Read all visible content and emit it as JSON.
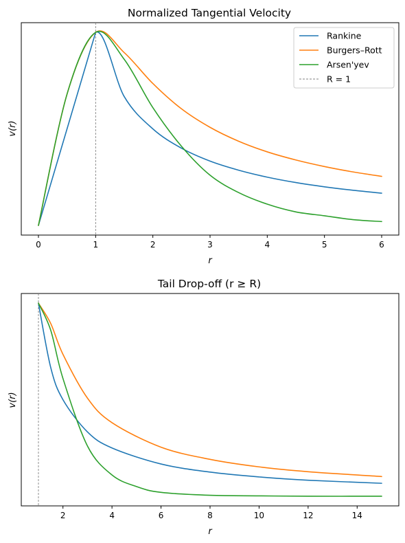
{
  "chart_data": [
    {
      "type": "line",
      "title": "Normalized Tangential Velocity",
      "xlabel": "r",
      "ylabel": "v(r)",
      "xlim": [
        -0.3,
        6.3
      ],
      "ylim": [
        -0.05,
        1.05
      ],
      "xticks": [
        0,
        1,
        2,
        3,
        4,
        5,
        6
      ],
      "yticks_shown": false,
      "grid": false,
      "legend_position": "top-right",
      "reference_line": {
        "x": 1,
        "label": "R = 1",
        "style": "dashed",
        "color": "#808080"
      },
      "series": [
        {
          "name": "Rankine",
          "color": "#1f77b4",
          "x": [
            0,
            0.5,
            1.0,
            1.5,
            2.0,
            2.5,
            3.0,
            3.5,
            4.0,
            4.5,
            5.0,
            5.5,
            6.0
          ],
          "y": [
            0,
            0.5,
            1.0,
            0.667,
            0.5,
            0.4,
            0.333,
            0.286,
            0.25,
            0.222,
            0.2,
            0.182,
            0.167
          ]
        },
        {
          "name": "Burgers–Rott",
          "color": "#ff7f0e",
          "x": [
            0,
            0.5,
            1.0,
            1.5,
            2.0,
            2.5,
            3.0,
            3.5,
            4.0,
            4.5,
            5.0,
            5.5,
            6.0
          ],
          "y": [
            0,
            0.68,
            1.0,
            0.895,
            0.735,
            0.604,
            0.508,
            0.436,
            0.381,
            0.339,
            0.305,
            0.277,
            0.254
          ]
        },
        {
          "name": "Arsen'yev",
          "color": "#2ca02c",
          "x": [
            0,
            0.5,
            1.0,
            1.5,
            2.0,
            2.5,
            3.0,
            3.5,
            4.0,
            4.5,
            5.0,
            5.5,
            6.0
          ],
          "y": [
            0,
            0.68,
            1.0,
            0.86,
            0.61,
            0.41,
            0.26,
            0.17,
            0.11,
            0.07,
            0.05,
            0.03,
            0.02
          ]
        }
      ],
      "legend": [
        "Rankine",
        "Burgers–Rott",
        "Arsen'yev",
        "R = 1"
      ]
    },
    {
      "type": "line",
      "title": "Tail Drop-off (r ≥ R)",
      "xlabel": "r",
      "ylabel": "v(r)",
      "xlim": [
        0.3,
        15.7
      ],
      "ylim": [
        -0.05,
        1.05
      ],
      "xticks": [
        2,
        4,
        6,
        8,
        10,
        12,
        14
      ],
      "yticks_shown": false,
      "grid": false,
      "reference_line": {
        "x": 1,
        "style": "dashed",
        "color": "#808080"
      },
      "series": [
        {
          "name": "Rankine",
          "color": "#1f77b4",
          "x": [
            1,
            1.5,
            2,
            3,
            4,
            6,
            8,
            10,
            12,
            15
          ],
          "y": [
            1.0,
            0.667,
            0.5,
            0.333,
            0.25,
            0.167,
            0.125,
            0.1,
            0.083,
            0.067
          ]
        },
        {
          "name": "Burgers–Rott",
          "color": "#ff7f0e",
          "x": [
            1,
            1.5,
            2,
            3,
            4,
            6,
            8,
            10,
            12,
            15
          ],
          "y": [
            1.0,
            0.895,
            0.735,
            0.508,
            0.381,
            0.254,
            0.191,
            0.152,
            0.127,
            0.102
          ]
        },
        {
          "name": "Arsen'yev",
          "color": "#2ca02c",
          "x": [
            1,
            1.5,
            2,
            3,
            4,
            5,
            6,
            8,
            10,
            12,
            15
          ],
          "y": [
            1.0,
            0.86,
            0.61,
            0.26,
            0.11,
            0.05,
            0.02,
            0.005,
            0.002,
            0.0,
            0.0
          ]
        }
      ]
    }
  ]
}
